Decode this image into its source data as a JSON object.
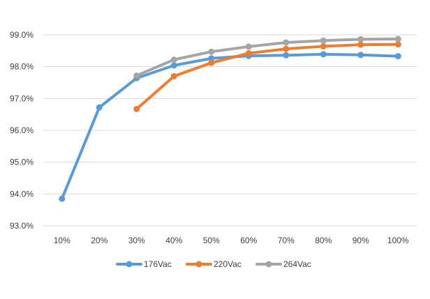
{
  "chart_data": {
    "type": "line",
    "title": "",
    "xlabel": "",
    "ylabel": "",
    "categories": [
      "10%",
      "20%",
      "30%",
      "40%",
      "50%",
      "60%",
      "70%",
      "80%",
      "90%",
      "100%"
    ],
    "ylim": [
      93.0,
      99.0
    ],
    "yticks": [
      "93.0%",
      "94.0%",
      "95.0%",
      "96.0%",
      "97.0%",
      "98.0%",
      "99.0%"
    ],
    "grid": true,
    "legend_position": "bottom",
    "series": [
      {
        "name": "176Vac",
        "color": "#5B9BD5",
        "values": [
          93.85,
          96.72,
          97.64,
          98.04,
          98.26,
          98.34,
          98.36,
          98.39,
          98.37,
          98.33
        ]
      },
      {
        "name": "220Vac",
        "color": "#ED7D31",
        "values": [
          null,
          null,
          96.67,
          97.7,
          98.12,
          98.42,
          98.56,
          98.64,
          98.69,
          98.7
        ]
      },
      {
        "name": "264Vac",
        "color": "#A5A5A5",
        "values": [
          null,
          null,
          97.72,
          98.22,
          98.47,
          98.63,
          98.76,
          98.82,
          98.86,
          98.87
        ]
      }
    ]
  }
}
